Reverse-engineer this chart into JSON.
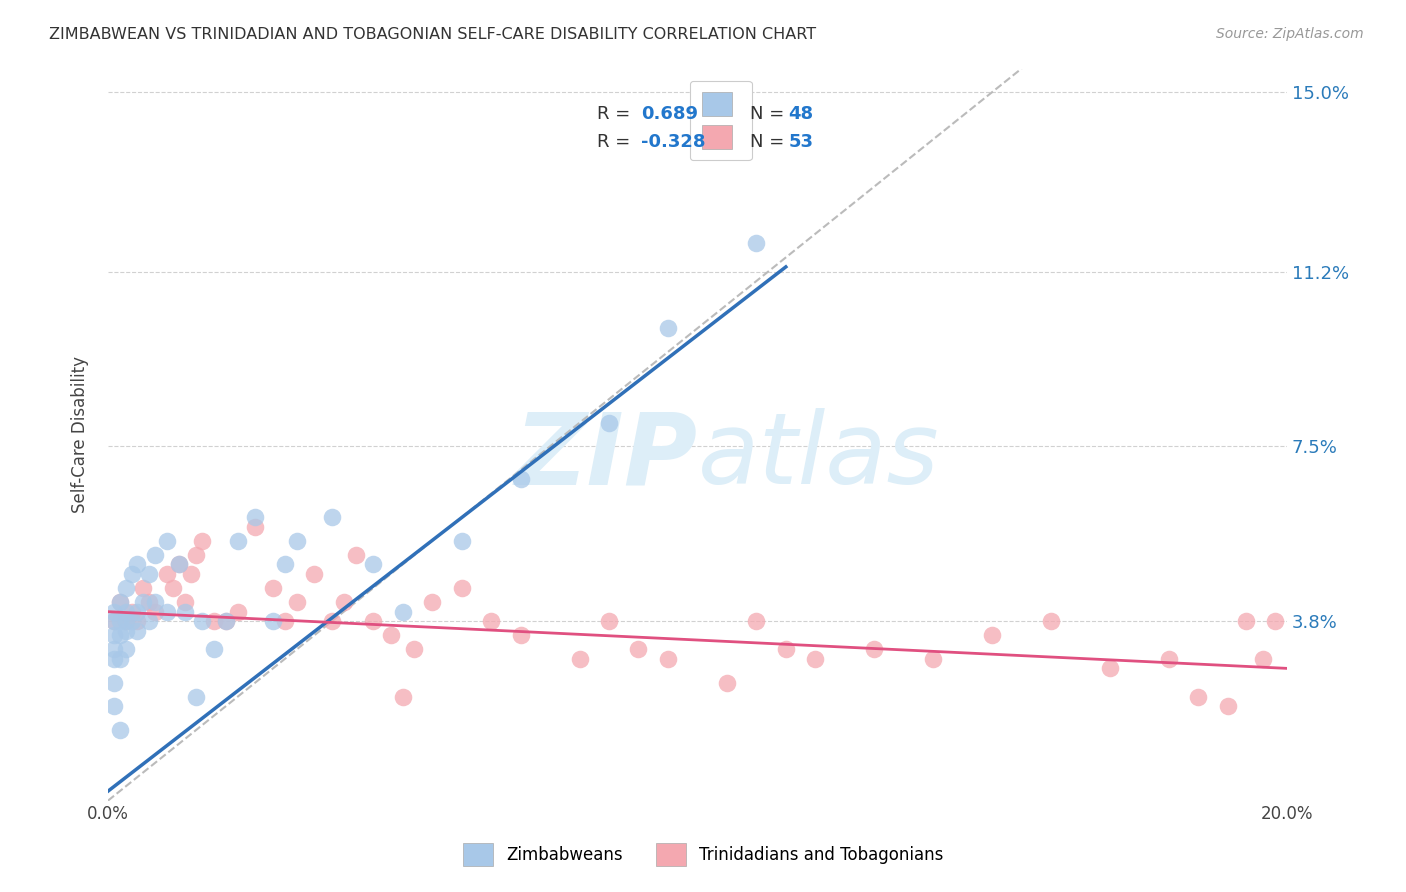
{
  "title": "ZIMBABWEAN VS TRINIDADIAN AND TOBAGONIAN SELF-CARE DISABILITY CORRELATION CHART",
  "source": "Source: ZipAtlas.com",
  "ylabel": "Self-Care Disability",
  "xlim": [
    0.0,
    0.2
  ],
  "ylim": [
    0.0,
    0.155
  ],
  "xtick_positions": [
    0.0,
    0.05,
    0.1,
    0.15,
    0.2
  ],
  "xticklabels": [
    "0.0%",
    "",
    "",
    "",
    "20.0%"
  ],
  "ytick_positions": [
    0.038,
    0.075,
    0.112,
    0.15
  ],
  "yticklabels": [
    "3.8%",
    "7.5%",
    "11.2%",
    "15.0%"
  ],
  "zimbabwean_R": 0.689,
  "zimbabwean_N": 48,
  "trinidadian_R": -0.328,
  "trinidadian_N": 53,
  "zimbabwean_scatter_color": "#a8c8e8",
  "trinidadian_scatter_color": "#f4a8b0",
  "zimbabwean_line_color": "#3070b8",
  "trinidadian_line_color": "#e05080",
  "diagonal_line_color": "#bbbbbb",
  "background_color": "#ffffff",
  "grid_color": "#cccccc",
  "watermark_color": "#ddeef8",
  "legend_label_zimbabwean": "Zimbabweans",
  "legend_label_trinidadian": "Trinidadians and Tobagonians",
  "zim_line_x0": 0.0,
  "zim_line_y0": 0.002,
  "zim_line_x1": 0.115,
  "zim_line_y1": 0.113,
  "tri_line_x0": 0.0,
  "tri_line_y0": 0.04,
  "tri_line_x1": 0.2,
  "tri_line_y1": 0.028,
  "diag_line_x0": 0.0,
  "diag_line_y0": 0.0,
  "diag_line_x1": 0.155,
  "diag_line_y1": 0.155,
  "zimbabwean_x": [
    0.001,
    0.001,
    0.001,
    0.001,
    0.001,
    0.001,
    0.001,
    0.002,
    0.002,
    0.002,
    0.002,
    0.002,
    0.003,
    0.003,
    0.003,
    0.003,
    0.003,
    0.004,
    0.004,
    0.005,
    0.005,
    0.005,
    0.006,
    0.007,
    0.007,
    0.008,
    0.008,
    0.01,
    0.01,
    0.012,
    0.013,
    0.015,
    0.016,
    0.018,
    0.02,
    0.022,
    0.025,
    0.028,
    0.03,
    0.032,
    0.038,
    0.045,
    0.05,
    0.06,
    0.07,
    0.085,
    0.095,
    0.11
  ],
  "zimbabwean_y": [
    0.02,
    0.025,
    0.03,
    0.032,
    0.035,
    0.038,
    0.04,
    0.015,
    0.03,
    0.035,
    0.038,
    0.042,
    0.032,
    0.036,
    0.038,
    0.04,
    0.045,
    0.038,
    0.048,
    0.036,
    0.04,
    0.05,
    0.042,
    0.038,
    0.048,
    0.042,
    0.052,
    0.04,
    0.055,
    0.05,
    0.04,
    0.022,
    0.038,
    0.032,
    0.038,
    0.055,
    0.06,
    0.038,
    0.05,
    0.055,
    0.06,
    0.05,
    0.04,
    0.055,
    0.068,
    0.08,
    0.1,
    0.118
  ],
  "trinidadian_x": [
    0.001,
    0.002,
    0.003,
    0.004,
    0.005,
    0.006,
    0.007,
    0.008,
    0.01,
    0.011,
    0.012,
    0.013,
    0.014,
    0.015,
    0.016,
    0.018,
    0.02,
    0.022,
    0.025,
    0.028,
    0.03,
    0.032,
    0.035,
    0.038,
    0.04,
    0.042,
    0.045,
    0.048,
    0.05,
    0.052,
    0.055,
    0.06,
    0.065,
    0.07,
    0.08,
    0.085,
    0.09,
    0.095,
    0.105,
    0.11,
    0.115,
    0.12,
    0.13,
    0.14,
    0.15,
    0.16,
    0.17,
    0.18,
    0.185,
    0.19,
    0.193,
    0.196,
    0.198
  ],
  "trinidadian_y": [
    0.038,
    0.042,
    0.038,
    0.04,
    0.038,
    0.045,
    0.042,
    0.04,
    0.048,
    0.045,
    0.05,
    0.042,
    0.048,
    0.052,
    0.055,
    0.038,
    0.038,
    0.04,
    0.058,
    0.045,
    0.038,
    0.042,
    0.048,
    0.038,
    0.042,
    0.052,
    0.038,
    0.035,
    0.022,
    0.032,
    0.042,
    0.045,
    0.038,
    0.035,
    0.03,
    0.038,
    0.032,
    0.03,
    0.025,
    0.038,
    0.032,
    0.03,
    0.032,
    0.03,
    0.035,
    0.038,
    0.028,
    0.03,
    0.022,
    0.02,
    0.038,
    0.03,
    0.038
  ]
}
